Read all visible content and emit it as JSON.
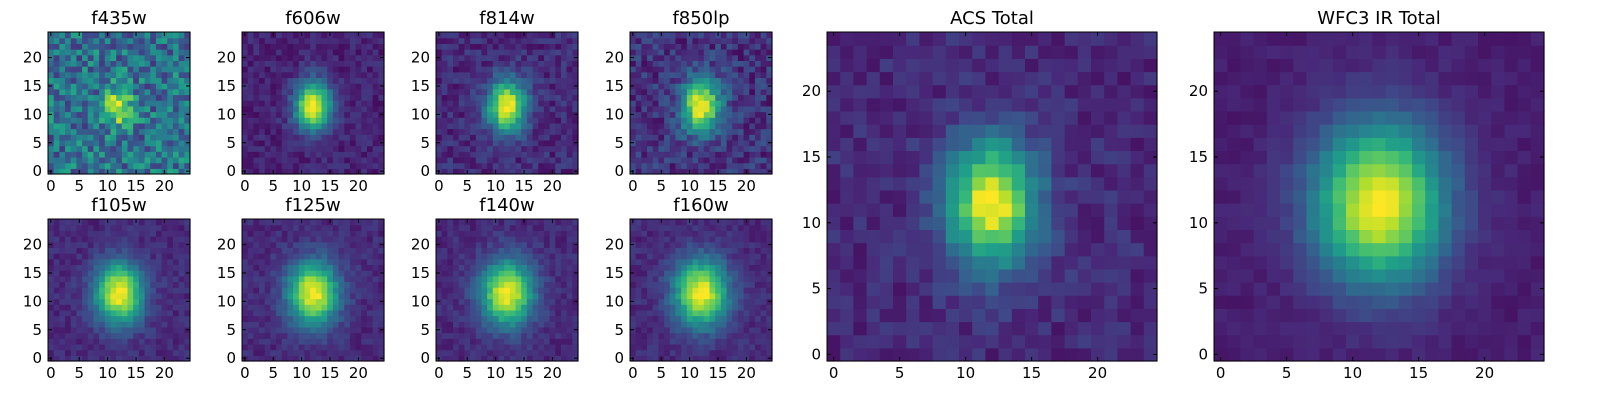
{
  "chart_data": {
    "type": "heatmap",
    "colormap": "viridis",
    "pixel_grid": [
      25,
      25
    ],
    "origin": "lower",
    "xlim": [
      -0.5,
      24.5
    ],
    "ylim": [
      -0.5,
      24.5
    ],
    "panels": [
      {
        "title": "f435w",
        "xticks": [
          "0",
          "5",
          "10",
          "15",
          "20"
        ],
        "yticks": [
          "0",
          "5",
          "10",
          "15",
          "20"
        ],
        "source": {
          "cx": 12.0,
          "cy": 11.5,
          "sx": 1.6,
          "sy": 2.2,
          "peak": 1.0,
          "background": 0.38,
          "noise": 0.22
        }
      },
      {
        "title": "f606w",
        "xticks": [
          "0",
          "5",
          "10",
          "15",
          "20"
        ],
        "yticks": [
          "0",
          "5",
          "10",
          "15",
          "20"
        ],
        "source": {
          "cx": 12.0,
          "cy": 11.5,
          "sx": 2.2,
          "sy": 3.0,
          "peak": 1.0,
          "background": 0.1,
          "noise": 0.07
        }
      },
      {
        "title": "f814w",
        "xticks": [
          "0",
          "5",
          "10",
          "15",
          "20"
        ],
        "yticks": [
          "0",
          "5",
          "10",
          "15",
          "20"
        ],
        "source": {
          "cx": 12.0,
          "cy": 11.5,
          "sx": 2.4,
          "sy": 3.2,
          "peak": 1.0,
          "background": 0.12,
          "noise": 0.09
        }
      },
      {
        "title": "f850lp",
        "xticks": [
          "0",
          "5",
          "10",
          "15",
          "20"
        ],
        "yticks": [
          "0",
          "5",
          "10",
          "15",
          "20"
        ],
        "source": {
          "cx": 12.0,
          "cy": 11.5,
          "sx": 2.4,
          "sy": 3.3,
          "peak": 1.0,
          "background": 0.15,
          "noise": 0.12
        }
      },
      {
        "title": "f105w",
        "xticks": [
          "0",
          "5",
          "10",
          "15",
          "20"
        ],
        "yticks": [
          "0",
          "5",
          "10",
          "15",
          "20"
        ],
        "source": {
          "cx": 12.0,
          "cy": 11.5,
          "sx": 3.0,
          "sy": 3.8,
          "peak": 1.0,
          "background": 0.12,
          "noise": 0.06
        }
      },
      {
        "title": "f125w",
        "xticks": [
          "0",
          "5",
          "10",
          "15",
          "20"
        ],
        "yticks": [
          "0",
          "5",
          "10",
          "15",
          "20"
        ],
        "source": {
          "cx": 12.0,
          "cy": 11.5,
          "sx": 3.1,
          "sy": 3.9,
          "peak": 1.0,
          "background": 0.12,
          "noise": 0.06
        }
      },
      {
        "title": "f140w",
        "xticks": [
          "0",
          "5",
          "10",
          "15",
          "20"
        ],
        "yticks": [
          "0",
          "5",
          "10",
          "15",
          "20"
        ],
        "source": {
          "cx": 12.0,
          "cy": 11.5,
          "sx": 3.2,
          "sy": 4.0,
          "peak": 1.0,
          "background": 0.12,
          "noise": 0.06
        }
      },
      {
        "title": "f160w",
        "xticks": [
          "0",
          "5",
          "10",
          "15",
          "20"
        ],
        "yticks": [
          "0",
          "5",
          "10",
          "15",
          "20"
        ],
        "source": {
          "cx": 12.0,
          "cy": 11.5,
          "sx": 3.3,
          "sy": 4.1,
          "peak": 1.0,
          "background": 0.12,
          "noise": 0.06
        }
      },
      {
        "title": "ACS Total",
        "xticks": [
          "0",
          "5",
          "10",
          "15",
          "20"
        ],
        "yticks": [
          "0",
          "5",
          "10",
          "15",
          "20"
        ],
        "source": {
          "cx": 12.0,
          "cy": 11.5,
          "sx": 2.4,
          "sy": 3.3,
          "peak": 1.0,
          "background": 0.12,
          "noise": 0.07
        }
      },
      {
        "title": "WFC3 IR Total",
        "xticks": [
          "0",
          "5",
          "10",
          "15",
          "20"
        ],
        "yticks": [
          "0",
          "5",
          "10",
          "15",
          "20"
        ],
        "source": {
          "cx": 12.0,
          "cy": 11.5,
          "sx": 3.5,
          "sy": 4.3,
          "peak": 1.0,
          "background": 0.08,
          "noise": 0.03
        }
      }
    ]
  }
}
